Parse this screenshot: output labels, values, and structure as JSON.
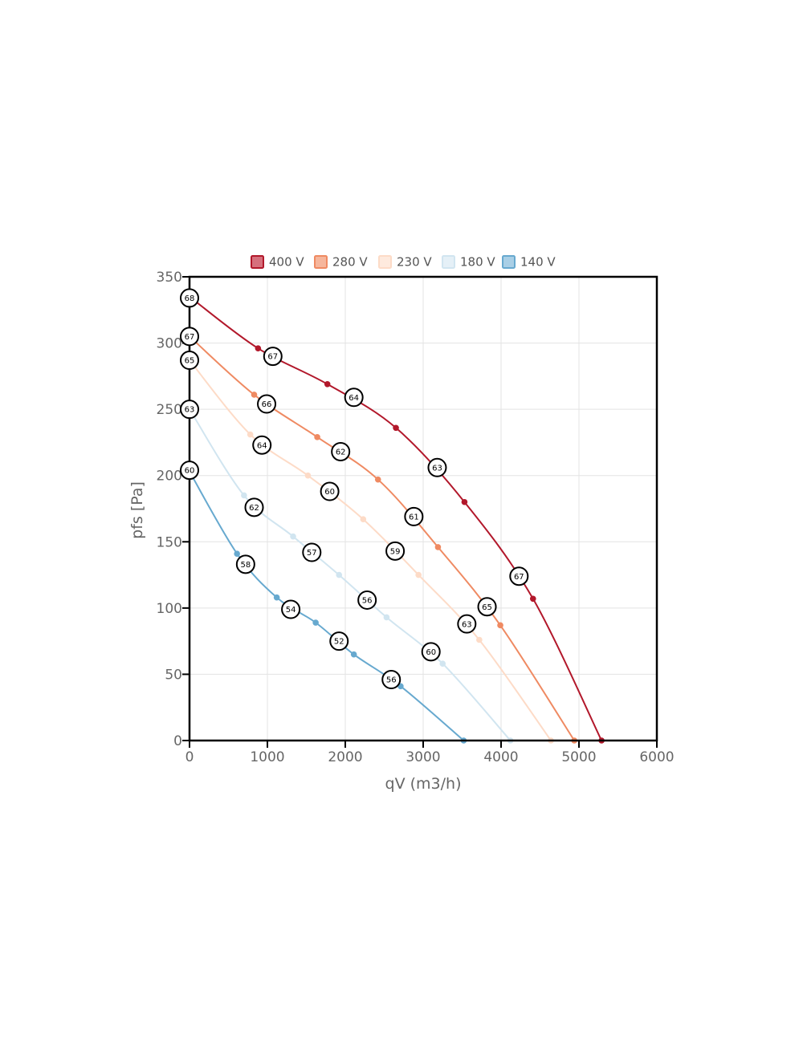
{
  "chart_data": {
    "type": "line",
    "xlabel": "qV (m3/h)",
    "ylabel": "pfs [Pa]",
    "xlim": [
      0,
      6000
    ],
    "ylim": [
      0,
      350
    ],
    "xticks": [
      0,
      1000,
      2000,
      3000,
      4000,
      5000,
      6000
    ],
    "yticks": [
      0,
      50,
      100,
      150,
      200,
      250,
      300,
      350
    ],
    "grid": true,
    "legend_position": "top",
    "series": [
      {
        "name": "400 V",
        "color": "#b2182b",
        "fill": "#d6707d",
        "points": [
          [
            0,
            335
          ],
          [
            880,
            296
          ],
          [
            1770,
            269
          ],
          [
            2650,
            236
          ],
          [
            3530,
            180
          ],
          [
            4410,
            107
          ],
          [
            5290,
            0
          ]
        ],
        "labels": [
          {
            "x": 0,
            "y": 334,
            "text": "68"
          },
          {
            "x": 1070,
            "y": 290,
            "text": "67"
          },
          {
            "x": 2110,
            "y": 259,
            "text": "64"
          },
          {
            "x": 3180,
            "y": 206,
            "text": "63"
          },
          {
            "x": 4230,
            "y": 124,
            "text": "67"
          }
        ]
      },
      {
        "name": "280 V",
        "color": "#ef8a62",
        "fill": "#f6b69c",
        "points": [
          [
            0,
            305
          ],
          [
            830,
            261
          ],
          [
            1640,
            229
          ],
          [
            2420,
            197
          ],
          [
            3190,
            146
          ],
          [
            3990,
            87
          ],
          [
            4940,
            0
          ]
        ],
        "labels": [
          {
            "x": 0,
            "y": 305,
            "text": "67"
          },
          {
            "x": 990,
            "y": 254,
            "text": "66"
          },
          {
            "x": 1940,
            "y": 218,
            "text": "62"
          },
          {
            "x": 2880,
            "y": 169,
            "text": "61"
          },
          {
            "x": 3820,
            "y": 101,
            "text": "65"
          }
        ]
      },
      {
        "name": "230 V",
        "color": "#fddbc7",
        "fill": "#feeade",
        "points": [
          [
            0,
            287
          ],
          [
            780,
            231
          ],
          [
            1520,
            200
          ],
          [
            2230,
            167
          ],
          [
            2940,
            125
          ],
          [
            3720,
            76
          ],
          [
            4640,
            0
          ]
        ],
        "labels": [
          {
            "x": 0,
            "y": 287,
            "text": "65"
          },
          {
            "x": 930,
            "y": 223,
            "text": "64"
          },
          {
            "x": 1800,
            "y": 188,
            "text": "60"
          },
          {
            "x": 2640,
            "y": 143,
            "text": "59"
          },
          {
            "x": 3560,
            "y": 88,
            "text": "63"
          }
        ]
      },
      {
        "name": "180 V",
        "color": "#d1e5f0",
        "fill": "#e5f0f7",
        "points": [
          [
            0,
            250
          ],
          [
            700,
            185
          ],
          [
            1330,
            154
          ],
          [
            1920,
            125
          ],
          [
            2530,
            93
          ],
          [
            3250,
            58
          ],
          [
            4120,
            0
          ]
        ],
        "labels": [
          {
            "x": 0,
            "y": 250,
            "text": "63"
          },
          {
            "x": 830,
            "y": 176,
            "text": "62"
          },
          {
            "x": 1570,
            "y": 142,
            "text": "57"
          },
          {
            "x": 2280,
            "y": 106,
            "text": "56"
          },
          {
            "x": 3100,
            "y": 67,
            "text": "60"
          }
        ]
      },
      {
        "name": "140 V",
        "color": "#67a9cf",
        "fill": "#a9cfe6",
        "points": [
          [
            0,
            203
          ],
          [
            610,
            141
          ],
          [
            1120,
            108
          ],
          [
            1620,
            89
          ],
          [
            2110,
            65
          ],
          [
            2710,
            41
          ],
          [
            3520,
            0
          ]
        ],
        "labels": [
          {
            "x": 0,
            "y": 204,
            "text": "60"
          },
          {
            "x": 720,
            "y": 133,
            "text": "58"
          },
          {
            "x": 1300,
            "y": 99,
            "text": "54"
          },
          {
            "x": 1920,
            "y": 75,
            "text": "52"
          },
          {
            "x": 2590,
            "y": 46,
            "text": "56"
          }
        ]
      }
    ]
  }
}
